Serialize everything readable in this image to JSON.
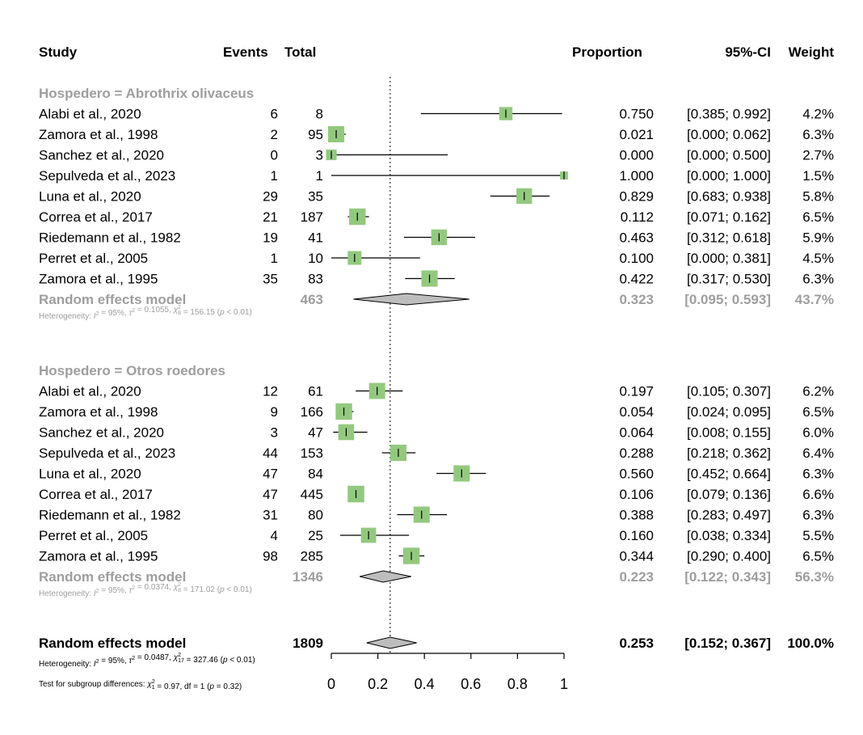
{
  "headers": {
    "study": "Study",
    "events": "Events",
    "total": "Total",
    "proportion": "Proportion",
    "ci": "95%-CI",
    "weight": "Weight"
  },
  "chart_data": {
    "type": "forest",
    "xlim": [
      0,
      1
    ],
    "x_ticks": [
      "0",
      "0.2",
      "0.4",
      "0.6",
      "0.8",
      "1"
    ],
    "reference_line": 0.253,
    "groups": [
      {
        "label": "Hospedero = Abrothrix olivaceus",
        "studies": [
          {
            "study": "Alabi et al., 2020",
            "events": "6",
            "total": "8",
            "est": 0.75,
            "lo": 0.385,
            "hi": 0.992,
            "est_text": "0.750",
            "ci_text": "[0.385; 0.992]",
            "weight_text": "4.2%",
            "weight": 4.2
          },
          {
            "study": "Zamora et al., 1998",
            "events": "2",
            "total": "95",
            "est": 0.021,
            "lo": 0.0,
            "hi": 0.062,
            "est_text": "0.021",
            "ci_text": "[0.000; 0.062]",
            "weight_text": "6.3%",
            "weight": 6.3
          },
          {
            "study": "Sanchez et al., 2020",
            "events": "0",
            "total": "3",
            "est": 0.0,
            "lo": 0.0,
            "hi": 0.5,
            "est_text": "0.000",
            "ci_text": "[0.000; 0.500]",
            "weight_text": "2.7%",
            "weight": 2.7
          },
          {
            "study": "Sepulveda et al., 2023",
            "events": "1",
            "total": "1",
            "est": 1.0,
            "lo": 0.0,
            "hi": 1.0,
            "est_text": "1.000",
            "ci_text": "[0.000; 1.000]",
            "weight_text": "1.5%",
            "weight": 1.5
          },
          {
            "study": "Luna et al., 2020",
            "events": "29",
            "total": "35",
            "est": 0.829,
            "lo": 0.683,
            "hi": 0.938,
            "est_text": "0.829",
            "ci_text": "[0.683; 0.938]",
            "weight_text": "5.8%",
            "weight": 5.8
          },
          {
            "study": "Correa et al., 2017",
            "events": "21",
            "total": "187",
            "est": 0.112,
            "lo": 0.071,
            "hi": 0.162,
            "est_text": "0.112",
            "ci_text": "[0.071; 0.162]",
            "weight_text": "6.5%",
            "weight": 6.5
          },
          {
            "study": "Riedemann et al., 1982",
            "events": "19",
            "total": "41",
            "est": 0.463,
            "lo": 0.312,
            "hi": 0.618,
            "est_text": "0.463",
            "ci_text": "[0.312; 0.618]",
            "weight_text": "5.9%",
            "weight": 5.9
          },
          {
            "study": "Perret et al., 2005",
            "events": "1",
            "total": "10",
            "est": 0.1,
            "lo": 0.0,
            "hi": 0.381,
            "est_text": "0.100",
            "ci_text": "[0.000; 0.381]",
            "weight_text": "4.5%",
            "weight": 4.5
          },
          {
            "study": "Zamora et al., 1995",
            "events": "35",
            "total": "83",
            "est": 0.422,
            "lo": 0.317,
            "hi": 0.53,
            "est_text": "0.422",
            "ci_text": "[0.317; 0.530]",
            "weight_text": "6.3%",
            "weight": 6.3
          }
        ],
        "summary": {
          "label": "Random effects model",
          "total": "463",
          "est": 0.323,
          "lo": 0.095,
          "hi": 0.593,
          "est_text": "0.323",
          "ci_text": "[0.095; 0.593]",
          "weight_text": "43.7%"
        },
        "heterogeneity": {
          "prefix": "Heterogeneity: ",
          "i2": "I",
          "i2_rest": " = 95%, ",
          "tau": "τ",
          "tau_rest": " = 0.1055, ",
          "chi": "χ",
          "chi_sub": "8",
          "chi_rest": " = 156.15 (",
          "p": "p",
          "p_rest": " < 0.01)"
        }
      },
      {
        "label": "Hospedero = Otros roedores",
        "studies": [
          {
            "study": "Alabi et al., 2020",
            "events": "12",
            "total": "61",
            "est": 0.197,
            "lo": 0.105,
            "hi": 0.307,
            "est_text": "0.197",
            "ci_text": "[0.105; 0.307]",
            "weight_text": "6.2%",
            "weight": 6.2
          },
          {
            "study": "Zamora et al., 1998",
            "events": "9",
            "total": "166",
            "est": 0.054,
            "lo": 0.024,
            "hi": 0.095,
            "est_text": "0.054",
            "ci_text": "[0.024; 0.095]",
            "weight_text": "6.5%",
            "weight": 6.5
          },
          {
            "study": "Sanchez et al., 2020",
            "events": "3",
            "total": "47",
            "est": 0.064,
            "lo": 0.008,
            "hi": 0.155,
            "est_text": "0.064",
            "ci_text": "[0.008; 0.155]",
            "weight_text": "6.0%",
            "weight": 6.0
          },
          {
            "study": "Sepulveda et al., 2023",
            "events": "44",
            "total": "153",
            "est": 0.288,
            "lo": 0.218,
            "hi": 0.362,
            "est_text": "0.288",
            "ci_text": "[0.218; 0.362]",
            "weight_text": "6.4%",
            "weight": 6.4
          },
          {
            "study": "Luna et al., 2020",
            "events": "47",
            "total": "84",
            "est": 0.56,
            "lo": 0.452,
            "hi": 0.664,
            "est_text": "0.560",
            "ci_text": "[0.452; 0.664]",
            "weight_text": "6.3%",
            "weight": 6.3
          },
          {
            "study": "Correa et al., 2017",
            "events": "47",
            "total": "445",
            "est": 0.106,
            "lo": 0.079,
            "hi": 0.136,
            "est_text": "0.106",
            "ci_text": "[0.079; 0.136]",
            "weight_text": "6.6%",
            "weight": 6.6
          },
          {
            "study": "Riedemann et al., 1982",
            "events": "31",
            "total": "80",
            "est": 0.388,
            "lo": 0.283,
            "hi": 0.497,
            "est_text": "0.388",
            "ci_text": "[0.283; 0.497]",
            "weight_text": "6.3%",
            "weight": 6.3
          },
          {
            "study": "Perret et al., 2005",
            "events": "4",
            "total": "25",
            "est": 0.16,
            "lo": 0.038,
            "hi": 0.334,
            "est_text": "0.160",
            "ci_text": "[0.038; 0.334]",
            "weight_text": "5.5%",
            "weight": 5.5
          },
          {
            "study": "Zamora et al., 1995",
            "events": "98",
            "total": "285",
            "est": 0.344,
            "lo": 0.29,
            "hi": 0.4,
            "est_text": "0.344",
            "ci_text": "[0.290; 0.400]",
            "weight_text": "6.5%",
            "weight": 6.5
          }
        ],
        "summary": {
          "label": "Random effects model",
          "total": "1346",
          "est": 0.223,
          "lo": 0.122,
          "hi": 0.343,
          "est_text": "0.223",
          "ci_text": "[0.122; 0.343]",
          "weight_text": "56.3%"
        },
        "heterogeneity": {
          "prefix": "Heterogeneity: ",
          "i2": "I",
          "i2_rest": " = 95%, ",
          "tau": "τ",
          "tau_rest": " = 0.0374, ",
          "chi": "χ",
          "chi_sub": "8",
          "chi_rest": " = 171.02 (",
          "p": "p",
          "p_rest": " < 0.01)"
        }
      }
    ],
    "overall": {
      "label": "Random effects model",
      "total": "1809",
      "est": 0.253,
      "lo": 0.152,
      "hi": 0.367,
      "est_text": "0.253",
      "ci_text": "[0.152; 0.367]",
      "weight_text": "100.0%",
      "heterogeneity": {
        "prefix": "Heterogeneity: ",
        "i2": "I",
        "i2_rest": " = 95%, ",
        "tau": "τ",
        "tau_rest": " = 0.0487, ",
        "chi": "χ",
        "chi_sub": "17",
        "chi_rest": " = 327.46 (",
        "p": "p",
        "p_rest": " < 0.01)"
      },
      "subgroup_test": {
        "prefix": "Test for subgroup differences: ",
        "chi": "χ",
        "chi_sub": "1",
        "chi_rest": " = 0.97, df = 1 (",
        "p": "p",
        "p_rest": " = 0.32)"
      }
    }
  }
}
